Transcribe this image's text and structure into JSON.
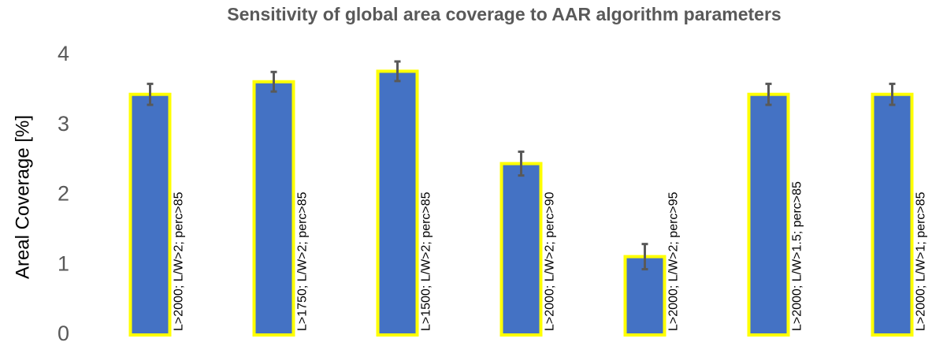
{
  "chart_data": {
    "type": "bar",
    "title": "Sensitivity of global area coverage to AAR algorithm parameters",
    "y_label": "Areal Coverage [%]",
    "categories": [
      "L>2000; L/W>2; perc>85",
      "L>1750; L/W>2; perc>85",
      "L>1500; L/W>2; perc>85",
      "L>2000; L/W>2; perc>90",
      "L>2000; L/W>2; perc>95",
      "L>2000; L/W>1.5; perc>85",
      "L>2000; L/W>1; perc>85"
    ],
    "values": [
      3.44,
      3.62,
      3.77,
      2.45,
      1.12,
      3.44,
      3.44
    ],
    "errors": [
      0.15,
      0.14,
      0.14,
      0.17,
      0.18,
      0.15,
      0.15
    ],
    "color": "#4472c4",
    "edge_color": "#ffff00",
    "error_color": "#595959",
    "ylim": [
      0,
      4
    ],
    "yticks": [
      0,
      1,
      2,
      3,
      4
    ],
    "grid": false
  }
}
